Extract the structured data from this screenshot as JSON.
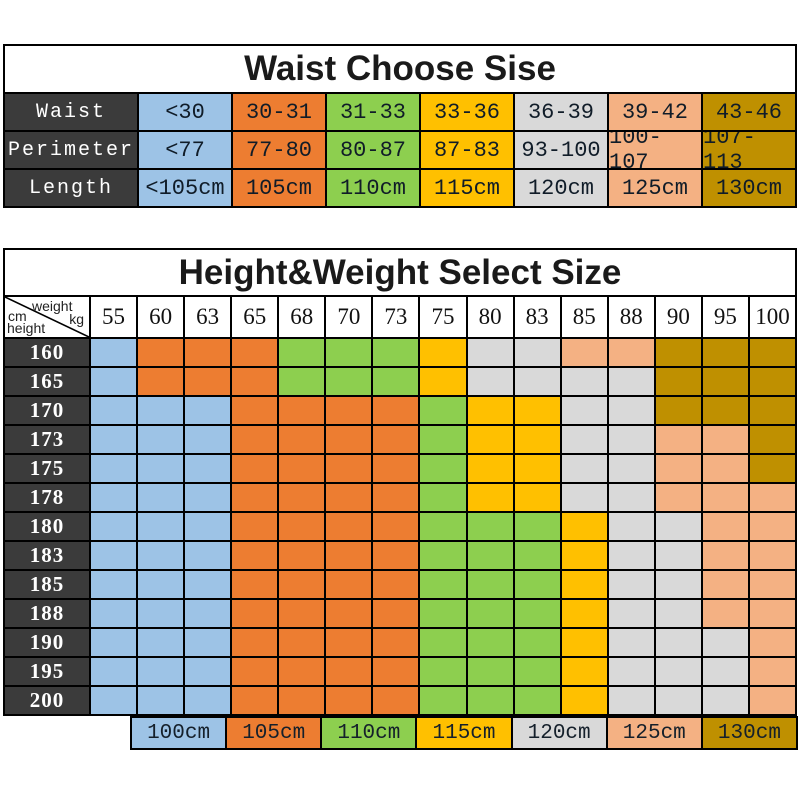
{
  "colors": {
    "blue": "#9DC3E6",
    "orange": "#ED7D31",
    "green": "#8DCF4F",
    "yellow": "#FFC000",
    "gray": "#D9D9D9",
    "peach": "#F4B183",
    "gold": "#BF9000",
    "header_dark": "#3B3B3B",
    "border": "#000000"
  },
  "chart_data": [
    {
      "type": "table",
      "title": "Waist Choose Sise",
      "col_colors": [
        "blue",
        "orange",
        "green",
        "yellow",
        "gray",
        "peach",
        "gold"
      ],
      "rows": [
        {
          "label": "Waist",
          "values": [
            "<30",
            "30-31",
            "31-33",
            "33-36",
            "36-39",
            "39-42",
            "43-46"
          ]
        },
        {
          "label": "Perimeter",
          "values": [
            "<77",
            "77-80",
            "80-87",
            "87-83",
            "93-100",
            "100-107",
            "107-113"
          ]
        },
        {
          "label": "Length",
          "values": [
            "<105cm",
            "105cm",
            "110cm",
            "115cm",
            "120cm",
            "125cm",
            "130cm"
          ]
        }
      ]
    },
    {
      "type": "heatmap",
      "title": "Height&Weight Select Size",
      "corner": {
        "unit_left": "cm",
        "axis_top": "weight",
        "axis_left": "height",
        "unit_top": "kg"
      },
      "x": [
        "55",
        "60",
        "63",
        "65",
        "68",
        "70",
        "73",
        "75",
        "80",
        "83",
        "85",
        "88",
        "90",
        "95",
        "100"
      ],
      "y": [
        "160",
        "165",
        "170",
        "173",
        "175",
        "178",
        "180",
        "183",
        "185",
        "188",
        "190",
        "195",
        "200"
      ],
      "cells": [
        [
          "blue",
          "orange",
          "orange",
          "orange",
          "green",
          "green",
          "green",
          "yellow",
          "gray",
          "gray",
          "peach",
          "peach",
          "gold",
          "gold",
          "gold"
        ],
        [
          "blue",
          "orange",
          "orange",
          "orange",
          "green",
          "green",
          "green",
          "yellow",
          "gray",
          "gray",
          "gray",
          "gray",
          "gold",
          "gold",
          "gold"
        ],
        [
          "blue",
          "blue",
          "blue",
          "orange",
          "orange",
          "orange",
          "orange",
          "green",
          "yellow",
          "yellow",
          "gray",
          "gray",
          "gold",
          "gold",
          "gold"
        ],
        [
          "blue",
          "blue",
          "blue",
          "orange",
          "orange",
          "orange",
          "orange",
          "green",
          "yellow",
          "yellow",
          "gray",
          "gray",
          "peach",
          "peach",
          "gold"
        ],
        [
          "blue",
          "blue",
          "blue",
          "orange",
          "orange",
          "orange",
          "orange",
          "green",
          "yellow",
          "yellow",
          "gray",
          "gray",
          "peach",
          "peach",
          "gold"
        ],
        [
          "blue",
          "blue",
          "blue",
          "orange",
          "orange",
          "orange",
          "orange",
          "green",
          "yellow",
          "yellow",
          "gray",
          "gray",
          "peach",
          "peach",
          "peach"
        ],
        [
          "blue",
          "blue",
          "blue",
          "orange",
          "orange",
          "orange",
          "orange",
          "green",
          "green",
          "green",
          "yellow",
          "gray",
          "gray",
          "peach",
          "peach"
        ],
        [
          "blue",
          "blue",
          "blue",
          "orange",
          "orange",
          "orange",
          "orange",
          "green",
          "green",
          "green",
          "yellow",
          "gray",
          "gray",
          "peach",
          "peach"
        ],
        [
          "blue",
          "blue",
          "blue",
          "orange",
          "orange",
          "orange",
          "orange",
          "green",
          "green",
          "green",
          "yellow",
          "gray",
          "gray",
          "peach",
          "peach"
        ],
        [
          "blue",
          "blue",
          "blue",
          "orange",
          "orange",
          "orange",
          "orange",
          "green",
          "green",
          "green",
          "yellow",
          "gray",
          "gray",
          "peach",
          "peach"
        ],
        [
          "blue",
          "blue",
          "blue",
          "orange",
          "orange",
          "orange",
          "orange",
          "green",
          "green",
          "green",
          "yellow",
          "gray",
          "gray",
          "gray",
          "peach"
        ],
        [
          "blue",
          "blue",
          "blue",
          "orange",
          "orange",
          "orange",
          "orange",
          "green",
          "green",
          "green",
          "yellow",
          "gray",
          "gray",
          "gray",
          "peach"
        ],
        [
          "blue",
          "blue",
          "blue",
          "orange",
          "orange",
          "orange",
          "orange",
          "green",
          "green",
          "green",
          "yellow",
          "gray",
          "gray",
          "gray",
          "peach"
        ]
      ],
      "legend": [
        {
          "label": "100cm",
          "color": "blue"
        },
        {
          "label": "105cm",
          "color": "orange"
        },
        {
          "label": "110cm",
          "color": "green"
        },
        {
          "label": "115cm",
          "color": "yellow"
        },
        {
          "label": "120cm",
          "color": "gray"
        },
        {
          "label": "125cm",
          "color": "peach"
        },
        {
          "label": "130cm",
          "color": "gold"
        }
      ]
    }
  ]
}
